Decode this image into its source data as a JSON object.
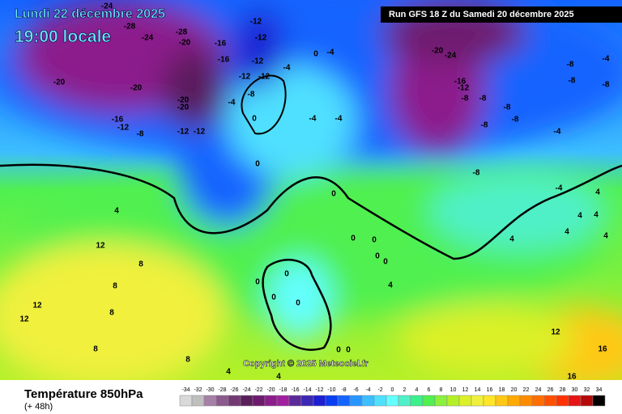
{
  "header": {
    "date": "Lundi 22 décembre 2025",
    "time": "19:00 locale",
    "run": "Run GFS 18 Z du Samedi 20 décembre 2025"
  },
  "copyright": "Copyright © 2025 Meteociel.fr",
  "legend": {
    "title": "Température 850hPa",
    "lead": "(+ 48h)",
    "scale": [
      -34,
      -32,
      -30,
      -28,
      -26,
      -24,
      -22,
      -20,
      -18,
      -16,
      -14,
      -12,
      -10,
      -8,
      -6,
      -4,
      -2,
      0,
      2,
      4,
      6,
      8,
      10,
      12,
      14,
      16,
      18,
      20,
      22,
      24,
      26,
      28,
      30,
      32,
      34
    ],
    "colors": [
      "#d9d9d9",
      "#bfbfbf",
      "#a680a6",
      "#8c5a8c",
      "#733973",
      "#5a1f5a",
      "#6e1a6e",
      "#8c1e8c",
      "#a020a0",
      "#5a2a9a",
      "#3c28b4",
      "#1e1ed2",
      "#0a3cf0",
      "#1464ff",
      "#2896ff",
      "#3cbeff",
      "#50e0ff",
      "#64ffff",
      "#50f0c8",
      "#3cf08c",
      "#50f050",
      "#8cf03c",
      "#b4f028",
      "#dcf028",
      "#f0f03c",
      "#ffe628",
      "#ffc814",
      "#ffaa00",
      "#ff8c00",
      "#ff6e00",
      "#ff5000",
      "#ff3200",
      "#e61414",
      "#b40a0a",
      "#000000"
    ]
  },
  "map_labels": [
    -24,
    -28,
    -28,
    -24,
    -20,
    -20,
    -20,
    -20,
    -20,
    -16,
    -12,
    -8,
    -12,
    -12,
    -16,
    -16,
    -12,
    -12,
    -12,
    -12,
    -12,
    -8,
    -4,
    -4,
    0,
    -4,
    -4,
    -4,
    0,
    0,
    0,
    -20,
    -24,
    -16,
    -12,
    -8,
    -8,
    -8,
    -8,
    -8,
    -4,
    -8,
    -8,
    -8,
    -4,
    -8,
    -4,
    4,
    4,
    4,
    4,
    4,
    4,
    4,
    12,
    12,
    12,
    8,
    8,
    8,
    8,
    8,
    4,
    4,
    0,
    0,
    4,
    0,
    0,
    0,
    0,
    0,
    0,
    12,
    16,
    16,
    0,
    0
  ]
}
